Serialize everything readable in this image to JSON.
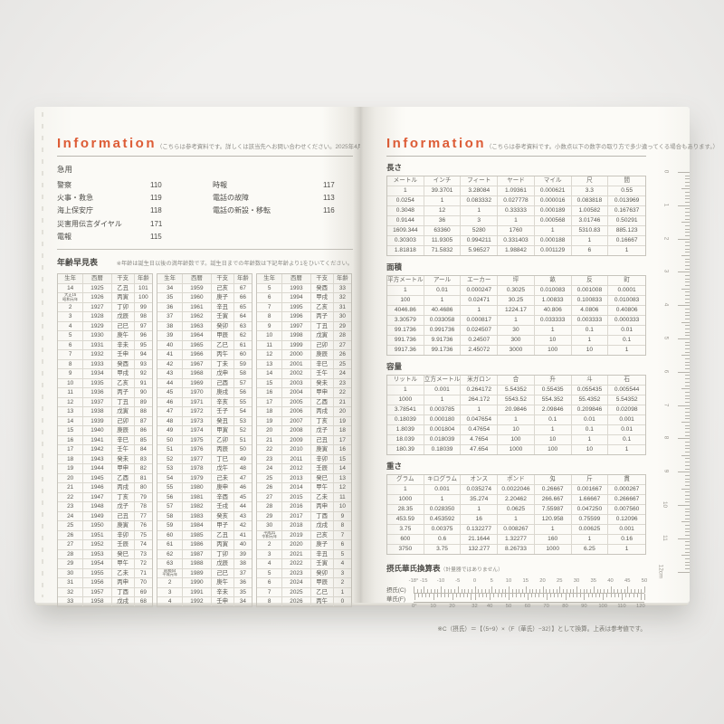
{
  "left_page": {
    "header": {
      "title": "Information",
      "note": "（こちらは参考資料です。詳しくは該当先へお問い合わせください。2025年4月現在）"
    },
    "emergency": {
      "title": "急用",
      "col1": [
        {
          "label": "警察",
          "number": "110"
        },
        {
          "label": "火事・救急",
          "number": "119"
        },
        {
          "label": "海上保安庁",
          "number": "118"
        },
        {
          "label": "災害用伝言ダイヤル",
          "number": "171"
        },
        {
          "label": "電報",
          "number": "115"
        }
      ],
      "col2": [
        {
          "label": "時報",
          "number": "117"
        },
        {
          "label": "電話の故障",
          "number": "113"
        },
        {
          "label": "電話の新設・移転",
          "number": "116"
        }
      ]
    },
    "age_table": {
      "title": "年齢早見表",
      "note": "※年齢は誕生日以後の満年齢数です。誕生日までの年齢数は下記年齢より1をひいてください。",
      "headers": [
        "生年",
        "西暦",
        "干支",
        "年齢"
      ],
      "groups": [
        [
          [
            "14",
            "1925",
            "乙丑",
            "101"
          ],
          [
            "大正15\n昭和元年",
            "1926",
            "丙寅",
            "100"
          ],
          [
            "2",
            "1927",
            "丁卯",
            "99"
          ],
          [
            "3",
            "1928",
            "戊辰",
            "98"
          ],
          [
            "4",
            "1929",
            "己巳",
            "97"
          ],
          [
            "5",
            "1930",
            "庚午",
            "96"
          ],
          [
            "6",
            "1931",
            "辛未",
            "95"
          ],
          [
            "7",
            "1932",
            "壬申",
            "94"
          ],
          [
            "8",
            "1933",
            "癸酉",
            "93"
          ],
          [
            "9",
            "1934",
            "甲戌",
            "92"
          ],
          [
            "10",
            "1935",
            "乙亥",
            "91"
          ],
          [
            "11",
            "1936",
            "丙子",
            "90"
          ],
          [
            "12",
            "1937",
            "丁丑",
            "89"
          ],
          [
            "13",
            "1938",
            "戊寅",
            "88"
          ],
          [
            "14",
            "1939",
            "己卯",
            "87"
          ],
          [
            "15",
            "1940",
            "庚辰",
            "86"
          ],
          [
            "16",
            "1941",
            "辛巳",
            "85"
          ],
          [
            "17",
            "1942",
            "壬午",
            "84"
          ],
          [
            "18",
            "1943",
            "癸未",
            "83"
          ],
          [
            "19",
            "1944",
            "甲申",
            "82"
          ],
          [
            "20",
            "1945",
            "乙酉",
            "81"
          ],
          [
            "21",
            "1946",
            "丙戌",
            "80"
          ],
          [
            "22",
            "1947",
            "丁亥",
            "79"
          ],
          [
            "23",
            "1948",
            "戊子",
            "78"
          ],
          [
            "24",
            "1949",
            "己丑",
            "77"
          ],
          [
            "25",
            "1950",
            "庚寅",
            "76"
          ],
          [
            "26",
            "1951",
            "辛卯",
            "75"
          ],
          [
            "27",
            "1952",
            "壬辰",
            "74"
          ],
          [
            "28",
            "1953",
            "癸巳",
            "73"
          ],
          [
            "29",
            "1954",
            "甲午",
            "72"
          ],
          [
            "30",
            "1955",
            "乙未",
            "71"
          ],
          [
            "31",
            "1956",
            "丙申",
            "70"
          ],
          [
            "32",
            "1957",
            "丁酉",
            "69"
          ],
          [
            "33",
            "1958",
            "戊戌",
            "68"
          ]
        ],
        [
          [
            "34",
            "1959",
            "己亥",
            "67"
          ],
          [
            "35",
            "1960",
            "庚子",
            "66"
          ],
          [
            "36",
            "1961",
            "辛丑",
            "65"
          ],
          [
            "37",
            "1962",
            "壬寅",
            "64"
          ],
          [
            "38",
            "1963",
            "癸卯",
            "63"
          ],
          [
            "39",
            "1964",
            "甲辰",
            "62"
          ],
          [
            "40",
            "1965",
            "乙巳",
            "61"
          ],
          [
            "41",
            "1966",
            "丙午",
            "60"
          ],
          [
            "42",
            "1967",
            "丁未",
            "59"
          ],
          [
            "43",
            "1968",
            "戊申",
            "58"
          ],
          [
            "44",
            "1969",
            "己酉",
            "57"
          ],
          [
            "45",
            "1970",
            "庚戌",
            "56"
          ],
          [
            "46",
            "1971",
            "辛亥",
            "55"
          ],
          [
            "47",
            "1972",
            "壬子",
            "54"
          ],
          [
            "48",
            "1973",
            "癸丑",
            "53"
          ],
          [
            "49",
            "1974",
            "甲寅",
            "52"
          ],
          [
            "50",
            "1975",
            "乙卯",
            "51"
          ],
          [
            "51",
            "1976",
            "丙辰",
            "50"
          ],
          [
            "52",
            "1977",
            "丁巳",
            "49"
          ],
          [
            "53",
            "1978",
            "戊午",
            "48"
          ],
          [
            "54",
            "1979",
            "己未",
            "47"
          ],
          [
            "55",
            "1980",
            "庚申",
            "46"
          ],
          [
            "56",
            "1981",
            "辛酉",
            "45"
          ],
          [
            "57",
            "1982",
            "壬戌",
            "44"
          ],
          [
            "58",
            "1983",
            "癸亥",
            "43"
          ],
          [
            "59",
            "1984",
            "甲子",
            "42"
          ],
          [
            "60",
            "1985",
            "乙丑",
            "41"
          ],
          [
            "61",
            "1986",
            "丙寅",
            "40"
          ],
          [
            "62",
            "1987",
            "丁卯",
            "39"
          ],
          [
            "63",
            "1988",
            "戊辰",
            "38"
          ],
          [
            "昭和64\n平成元年",
            "1989",
            "己巳",
            "37"
          ],
          [
            "2",
            "1990",
            "庚午",
            "36"
          ],
          [
            "3",
            "1991",
            "辛未",
            "35"
          ],
          [
            "4",
            "1992",
            "壬申",
            "34"
          ]
        ],
        [
          [
            "5",
            "1993",
            "癸酉",
            "33"
          ],
          [
            "6",
            "1994",
            "甲戌",
            "32"
          ],
          [
            "7",
            "1995",
            "乙亥",
            "31"
          ],
          [
            "8",
            "1996",
            "丙子",
            "30"
          ],
          [
            "9",
            "1997",
            "丁丑",
            "29"
          ],
          [
            "10",
            "1998",
            "戊寅",
            "28"
          ],
          [
            "11",
            "1999",
            "己卯",
            "27"
          ],
          [
            "12",
            "2000",
            "庚辰",
            "26"
          ],
          [
            "13",
            "2001",
            "辛巳",
            "25"
          ],
          [
            "14",
            "2002",
            "壬午",
            "24"
          ],
          [
            "15",
            "2003",
            "癸未",
            "23"
          ],
          [
            "16",
            "2004",
            "甲申",
            "22"
          ],
          [
            "17",
            "2005",
            "乙酉",
            "21"
          ],
          [
            "18",
            "2006",
            "丙戌",
            "20"
          ],
          [
            "19",
            "2007",
            "丁亥",
            "19"
          ],
          [
            "20",
            "2008",
            "戊子",
            "18"
          ],
          [
            "21",
            "2009",
            "己丑",
            "17"
          ],
          [
            "22",
            "2010",
            "庚寅",
            "16"
          ],
          [
            "23",
            "2011",
            "辛卯",
            "15"
          ],
          [
            "24",
            "2012",
            "壬辰",
            "14"
          ],
          [
            "25",
            "2013",
            "癸巳",
            "13"
          ],
          [
            "26",
            "2014",
            "甲午",
            "12"
          ],
          [
            "27",
            "2015",
            "乙未",
            "11"
          ],
          [
            "28",
            "2016",
            "丙申",
            "10"
          ],
          [
            "29",
            "2017",
            "丁酉",
            "9"
          ],
          [
            "30",
            "2018",
            "戊戌",
            "8"
          ],
          [
            "平成31\n令和元年",
            "2019",
            "己亥",
            "7"
          ],
          [
            "2",
            "2020",
            "庚子",
            "6"
          ],
          [
            "3",
            "2021",
            "辛丑",
            "5"
          ],
          [
            "4",
            "2022",
            "壬寅",
            "4"
          ],
          [
            "5",
            "2023",
            "癸卯",
            "3"
          ],
          [
            "6",
            "2024",
            "甲辰",
            "2"
          ],
          [
            "7",
            "2025",
            "乙巳",
            "1"
          ],
          [
            "8",
            "2026",
            "丙午",
            "0"
          ]
        ]
      ]
    }
  },
  "right_page": {
    "header": {
      "title": "Information",
      "note": "（こちらは参考資料です。小数点以下の数字の取り方で多少違ってくる場合もあります。）"
    },
    "tables": [
      {
        "id": "length",
        "title": "長さ",
        "headers": [
          "メートル",
          "インチ",
          "フィート",
          "ヤード",
          "マイル",
          "尺",
          "間"
        ],
        "rows": [
          [
            "1",
            "39.3701",
            "3.28084",
            "1.09361",
            "0.000621",
            "3.3",
            "0.55"
          ],
          [
            "0.0254",
            "1",
            "0.083332",
            "0.027778",
            "0.000016",
            "0.083818",
            "0.013969"
          ],
          [
            "0.3048",
            "12",
            "1",
            "0.33333",
            "0.000189",
            "1.00582",
            "0.167637"
          ],
          [
            "0.9144",
            "36",
            "3",
            "1",
            "0.000568",
            "3.01746",
            "0.50291"
          ],
          [
            "1609.344",
            "63360",
            "5280",
            "1760",
            "1",
            "5310.83",
            "885.123"
          ],
          [
            "0.30303",
            "11.9305",
            "0.994211",
            "0.331403",
            "0.000188",
            "1",
            "0.16667"
          ],
          [
            "1.81818",
            "71.5832",
            "5.96527",
            "1.98842",
            "0.001129",
            "6",
            "1"
          ]
        ]
      },
      {
        "id": "area",
        "title": "面積",
        "headers": [
          "平方メートル",
          "アール",
          "エーカー",
          "坪",
          "畝",
          "反",
          "町"
        ],
        "rows": [
          [
            "1",
            "0.01",
            "0.000247",
            "0.3025",
            "0.010083",
            "0.001008",
            "0.0001"
          ],
          [
            "100",
            "1",
            "0.02471",
            "30.25",
            "1.00833",
            "0.100833",
            "0.010083"
          ],
          [
            "4046.86",
            "40.4686",
            "1",
            "1224.17",
            "40.806",
            "4.0806",
            "0.40806"
          ],
          [
            "3.30579",
            "0.033058",
            "0.000817",
            "1",
            "0.033333",
            "0.003333",
            "0.000333"
          ],
          [
            "99.1736",
            "0.991736",
            "0.024507",
            "30",
            "1",
            "0.1",
            "0.01"
          ],
          [
            "991.736",
            "9.91736",
            "0.24507",
            "300",
            "10",
            "1",
            "0.1"
          ],
          [
            "9917.36",
            "99.1736",
            "2.45072",
            "3000",
            "100",
            "10",
            "1"
          ]
        ]
      },
      {
        "id": "volume",
        "title": "容量",
        "headers": [
          "リットル",
          "立方メートル",
          "米ガロン",
          "合",
          "升",
          "斗",
          "石"
        ],
        "rows": [
          [
            "1",
            "0.001",
            "0.264172",
            "5.54352",
            "0.55435",
            "0.055435",
            "0.005544"
          ],
          [
            "1000",
            "1",
            "264.172",
            "5543.52",
            "554.352",
            "55.4352",
            "5.54352"
          ],
          [
            "3.78541",
            "0.003785",
            "1",
            "20.9846",
            "2.09846",
            "0.209846",
            "0.02098"
          ],
          [
            "0.18039",
            "0.000180",
            "0.047654",
            "1",
            "0.1",
            "0.01",
            "0.001"
          ],
          [
            "1.8039",
            "0.001804",
            "0.47654",
            "10",
            "1",
            "0.1",
            "0.01"
          ],
          [
            "18.039",
            "0.018039",
            "4.7654",
            "100",
            "10",
            "1",
            "0.1"
          ],
          [
            "180.39",
            "0.18039",
            "47.654",
            "1000",
            "100",
            "10",
            "1"
          ]
        ]
      },
      {
        "id": "weight",
        "title": "重さ",
        "headers": [
          "グラム",
          "キログラム",
          "オンス",
          "ポンド",
          "匁",
          "斤",
          "貫"
        ],
        "rows": [
          [
            "1",
            "0.001",
            "0.035274",
            "0.0022046",
            "0.26667",
            "0.001667",
            "0.000267"
          ],
          [
            "1000",
            "1",
            "35.274",
            "2.20462",
            "266.667",
            "1.66667",
            "0.266667"
          ],
          [
            "28.35",
            "0.028350",
            "1",
            "0.0625",
            "7.55987",
            "0.047250",
            "0.007560"
          ],
          [
            "453.59",
            "0.453592",
            "16",
            "1",
            "120.958",
            "0.75599",
            "0.12096"
          ],
          [
            "3.75",
            "0.00375",
            "0.132277",
            "0.008267",
            "1",
            "0.00625",
            "0.001"
          ],
          [
            "600",
            "0.6",
            "21.1644",
            "1.32277",
            "160",
            "1",
            "0.16"
          ],
          [
            "3750",
            "3.75",
            "132.277",
            "8.26733",
            "1000",
            "6.25",
            "1"
          ]
        ]
      }
    ],
    "temp_chart": {
      "title": "摂氏華氏換算表",
      "title_note": "（計量器ではありません）",
      "c_label": "摂氏(C)",
      "f_label": "華氏(F)",
      "c_labels": [
        {
          "v": -18,
          "t": "-18°"
        },
        {
          "v": -15,
          "t": "-15"
        },
        {
          "v": -10,
          "t": "-10"
        },
        {
          "v": -5,
          "t": "-5"
        },
        {
          "v": 0,
          "t": "0"
        },
        {
          "v": 5,
          "t": "5"
        },
        {
          "v": 10,
          "t": "10"
        },
        {
          "v": 15,
          "t": "15"
        },
        {
          "v": 20,
          "t": "20"
        },
        {
          "v": 25,
          "t": "25"
        },
        {
          "v": 30,
          "t": "30"
        },
        {
          "v": 35,
          "t": "35"
        },
        {
          "v": 40,
          "t": "40"
        },
        {
          "v": 45,
          "t": "45"
        },
        {
          "v": 50,
          "t": "50"
        }
      ],
      "f_labels": [
        {
          "v": 0,
          "t": "0°"
        },
        {
          "v": 10,
          "t": "10"
        },
        {
          "v": 20,
          "t": "20"
        },
        {
          "v": 32,
          "t": "32"
        },
        {
          "v": 40,
          "t": "40"
        },
        {
          "v": 50,
          "t": "50"
        },
        {
          "v": 60,
          "t": "60"
        },
        {
          "v": 70,
          "t": "70"
        },
        {
          "v": 80,
          "t": "80"
        },
        {
          "v": 90,
          "t": "90"
        },
        {
          "v": 100,
          "t": "100"
        },
        {
          "v": 110,
          "t": "110"
        },
        {
          "v": 120,
          "t": "120"
        }
      ],
      "note": "※C（摂氏）＝【（5÷9）×（F（華氏）−32）】として換算。上表は参考値です。"
    },
    "ruler": {
      "labels": [
        "0",
        "1",
        "2",
        "3",
        "4",
        "5",
        "6",
        "7",
        "8",
        "9",
        "10",
        "11",
        "12cm"
      ]
    }
  }
}
